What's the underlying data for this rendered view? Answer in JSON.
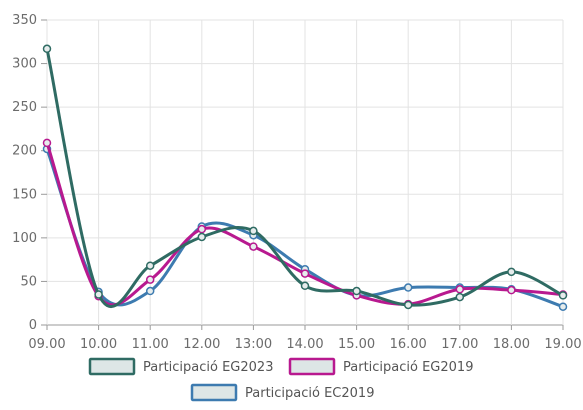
{
  "chart_data": {
    "type": "line",
    "title": "",
    "xlabel": "",
    "ylabel": "",
    "categories": [
      "09.00",
      "10.00",
      "11.00",
      "12.00",
      "13:00",
      "14.00",
      "15.00",
      "16.00",
      "17.00",
      "18.00",
      "19.00"
    ],
    "ylim": [
      0,
      350
    ],
    "yticks": [
      0,
      50,
      100,
      150,
      200,
      250,
      300,
      350
    ],
    "grid": true,
    "smooth": true,
    "legend_position": "bottom",
    "series": [
      {
        "name": "Participació EG2023",
        "color": "#2f6b63",
        "values": [
          317,
          35,
          68,
          101,
          108,
          45,
          39,
          23,
          32,
          61,
          34
        ]
      },
      {
        "name": "Participació EG2019",
        "color": "#b8198f",
        "values": [
          209,
          33,
          52,
          110,
          90,
          59,
          34,
          24,
          41,
          40,
          35
        ]
      },
      {
        "name": "Participació EC2019",
        "color": "#3d7bb0",
        "values": [
          202,
          38,
          39,
          113,
          103,
          64,
          34,
          43,
          43,
          41,
          21
        ]
      }
    ]
  }
}
